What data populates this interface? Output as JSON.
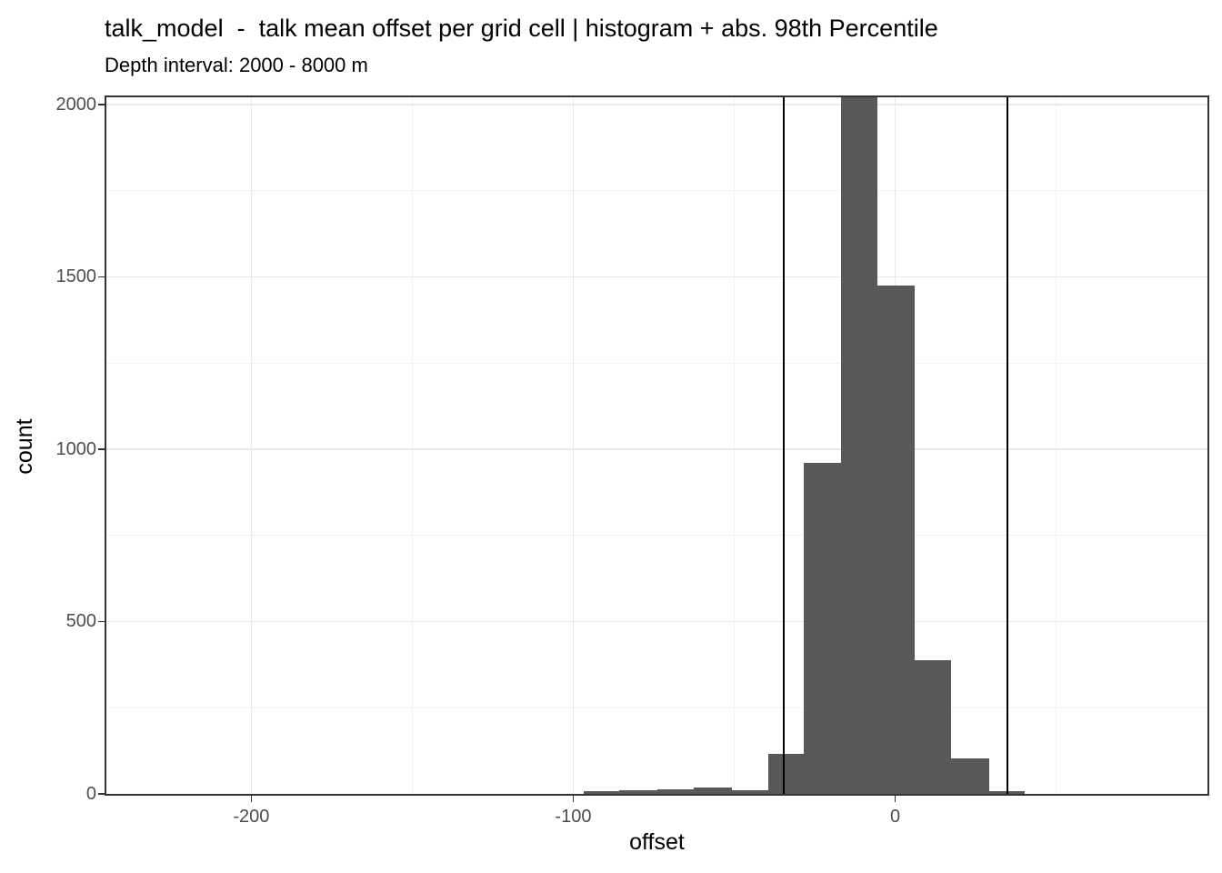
{
  "header": {
    "title": "talk_model  -  talk mean offset per grid cell | histogram + abs. 98th Percentile",
    "subtitle": "Depth interval: 2000 - 8000 m"
  },
  "chart_data": {
    "type": "bar",
    "subtype": "histogram",
    "title": "talk_model  -  talk mean offset per grid cell | histogram + abs. 98th Percentile",
    "subtitle": "Depth interval: 2000 - 8000 m",
    "xlabel": "offset",
    "ylabel": "count",
    "xlim": [
      -245,
      97
    ],
    "ylim": [
      0,
      2021
    ],
    "grid": true,
    "legend": false,
    "x_major_ticks": [
      -200,
      -100,
      0
    ],
    "x_tick_labels": [
      "-200",
      "-100",
      "0"
    ],
    "x_minor_gridlines": [
      -150,
      -50,
      50
    ],
    "y_major_ticks": [
      0,
      500,
      1000,
      1500,
      2000
    ],
    "y_tick_labels": [
      "0",
      "500",
      "1000",
      "1500",
      "2000"
    ],
    "y_minor_gridlines": [
      250,
      750,
      1250,
      1750
    ],
    "bins": [
      {
        "x0": -96.6,
        "x1": -85.6,
        "count": 9
      },
      {
        "x0": -85.6,
        "x1": -74.0,
        "count": 11
      },
      {
        "x0": -74.0,
        "x1": -62.7,
        "count": 13
      },
      {
        "x0": -62.7,
        "x1": -50.8,
        "count": 18
      },
      {
        "x0": -50.8,
        "x1": -39.3,
        "count": 11
      },
      {
        "x0": -39.3,
        "x1": -28.5,
        "count": 115
      },
      {
        "x0": -28.5,
        "x1": -16.9,
        "count": 960
      },
      {
        "x0": -16.9,
        "x1": -5.6,
        "count": 2100,
        "clipped_at_panel_top": true
      },
      {
        "x0": -5.6,
        "x1": 5.8,
        "count": 1475
      },
      {
        "x0": 5.8,
        "x1": 17.2,
        "count": 388
      },
      {
        "x0": 17.2,
        "x1": 29.0,
        "count": 103
      },
      {
        "x0": 29.0,
        "x1": 40.1,
        "count": 8
      }
    ],
    "reference_lines": {
      "label": "abs. 98th Percentile",
      "xintercepts": [
        -34.5,
        35.0
      ]
    },
    "colors": {
      "bar_fill": "#595959",
      "reference_line": "#000000",
      "panel_border": "#333333",
      "grid_major": "#E9E9E9",
      "grid_minor": "#F3F3F3",
      "axis_text": "#4D4D4D",
      "text": "#000000",
      "background": "#FFFFFF"
    }
  }
}
